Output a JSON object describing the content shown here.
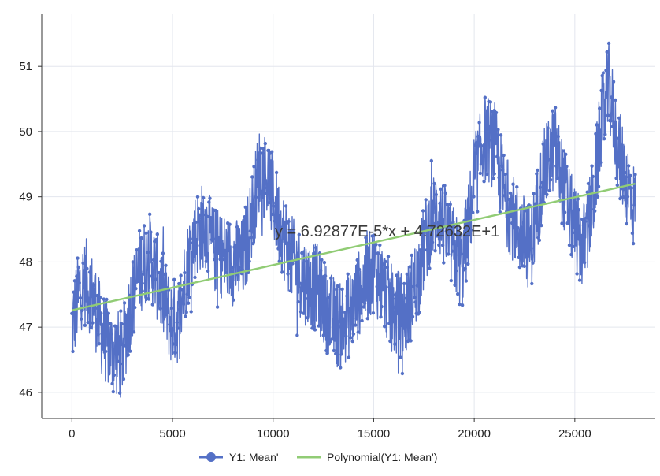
{
  "chart_data": {
    "type": "line",
    "title": "",
    "xlabel": "",
    "ylabel": "",
    "xlim": [
      -1500,
      29000
    ],
    "ylim": [
      45.6,
      51.8
    ],
    "x_ticks": [
      {
        "value": 0,
        "label": "0"
      },
      {
        "value": 5000,
        "label": "5000"
      },
      {
        "value": 10000,
        "label": "10000"
      },
      {
        "value": 15000,
        "label": "15000"
      },
      {
        "value": 20000,
        "label": "20000"
      },
      {
        "value": 25000,
        "label": "25000"
      }
    ],
    "y_ticks": [
      {
        "value": 46,
        "label": "46"
      },
      {
        "value": 47,
        "label": "47"
      },
      {
        "value": 48,
        "label": "48"
      },
      {
        "value": 49,
        "label": "49"
      },
      {
        "value": 50,
        "label": "50"
      },
      {
        "value": 51,
        "label": "51"
      }
    ],
    "grid": true,
    "legend_position": "bottom-center",
    "series": [
      {
        "name": "Y1: Mean'",
        "color": "#5470c6",
        "style": "line-with-markers",
        "trend_x": [
          0,
          400,
          700,
          1100,
          1500,
          2000,
          2500,
          2900,
          3400,
          3900,
          4400,
          4900,
          5300,
          5700,
          6100,
          6600,
          7000,
          7500,
          8000,
          8500,
          9000,
          9300,
          9700,
          10300,
          11000,
          11600,
          12200,
          12800,
          13300,
          13800,
          14400,
          15000,
          15500,
          16000,
          16600,
          17200,
          17800,
          18200,
          18800,
          19400,
          20000,
          20500,
          21000,
          21600,
          22200,
          22800,
          23400,
          24000,
          24400,
          24900,
          25400,
          25900,
          26300,
          26700,
          27100,
          27500,
          28000
        ],
        "trend_y": [
          47.0,
          47.6,
          47.7,
          47.4,
          46.9,
          46.6,
          46.6,
          47.3,
          47.9,
          48.1,
          47.6,
          47.1,
          47.1,
          47.9,
          48.4,
          48.6,
          48.2,
          48.1,
          48.0,
          48.0,
          48.8,
          49.4,
          49.3,
          48.6,
          48.0,
          47.7,
          47.6,
          47.2,
          47.0,
          47.2,
          47.6,
          47.9,
          47.6,
          47.2,
          47.2,
          47.8,
          48.6,
          48.8,
          48.3,
          47.9,
          49.2,
          49.9,
          49.8,
          48.9,
          48.5,
          48.2,
          49.3,
          49.8,
          49.2,
          48.6,
          48.2,
          48.9,
          50.1,
          50.7,
          49.8,
          49.3,
          48.8
        ],
        "y_min": 45.8,
        "y_max": 51.4
      },
      {
        "name": "Polynomial(Y1: Mean')",
        "color": "#91cc75",
        "style": "line",
        "x": [
          0,
          28000
        ],
        "values": [
          47.26,
          49.2
        ]
      }
    ],
    "annotation": "y = 6.92877E-5*x + 4.72632E+1"
  }
}
